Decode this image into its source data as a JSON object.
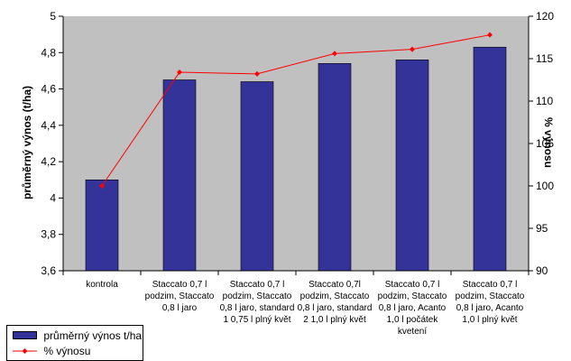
{
  "chart_data": {
    "type": "bar",
    "categories": [
      [
        "kontrola"
      ],
      [
        "Staccato 0,7 l",
        "podzim, Staccato",
        "0,8 l jaro"
      ],
      [
        "Staccato 0,7 l",
        "podzim, Staccato",
        "0,8 l jaro, standard",
        "1 0,75 l plný květ"
      ],
      [
        "Staccato 0,7l",
        "podzim, Staccato",
        "0,8 l jaro, standard",
        "2 1,0 l plný květ"
      ],
      [
        "Staccato 0,7 l",
        "podzim, Staccato",
        "0,8 l jaro, Acanto",
        "1,0 l počátek",
        "kvetení"
      ],
      [
        "Staccato 0,7 l",
        "podzim, Staccato",
        "0,8 l jaro, Acanto",
        "1,0 l plný květ"
      ]
    ],
    "series": [
      {
        "name": "průměrný výnos t/ha",
        "type": "bar",
        "axis": "left",
        "color": "#333399",
        "values": [
          4.1,
          4.65,
          4.64,
          4.74,
          4.76,
          4.83
        ]
      },
      {
        "name": "% výnosu",
        "type": "line",
        "axis": "right",
        "color": "#ff0000",
        "values": [
          100.0,
          113.4,
          113.2,
          115.6,
          116.1,
          117.8
        ]
      }
    ],
    "ylabel": "průměrný výnos (t/ha)",
    "y2label": "% výnosu",
    "ylim": [
      3.6,
      5
    ],
    "y2lim": [
      90,
      120
    ],
    "yticks": [
      "3,6",
      "3,8",
      "4",
      "4,2",
      "4,4",
      "4,6",
      "4,8",
      "5"
    ],
    "y2ticks": [
      "90",
      "95",
      "100",
      "105",
      "110",
      "115",
      "120"
    ],
    "plot_background": "#c0c0c0",
    "grid": false,
    "legend_position": "bottom-left"
  }
}
